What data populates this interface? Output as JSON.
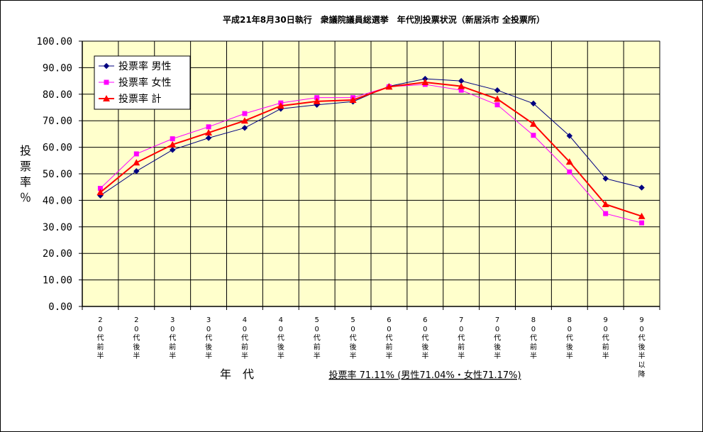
{
  "chart_data": {
    "type": "line",
    "title": "平成21年8月30日執行　衆議院議員総選挙　年代別投票状況（新居浜市 全投票所）",
    "xlabel": "年　代",
    "ylabel": "投票率％",
    "ylim": [
      0,
      100
    ],
    "yticks": [
      "0.00",
      "10.00",
      "20.00",
      "30.00",
      "40.00",
      "50.00",
      "60.00",
      "70.00",
      "80.00",
      "90.00",
      "100.00"
    ],
    "grid": true,
    "legend_position": "top-left",
    "categories": [
      "20代前半",
      "20代後半",
      "30代前半",
      "30代後半",
      "40代前半",
      "40代後半",
      "50代前半",
      "50代後半",
      "60代前半",
      "60代後半",
      "70代前半",
      "70代後半",
      "80代前半",
      "80代後半",
      "90代前半",
      "90代後半以降"
    ],
    "series": [
      {
        "name": "投票率 男性",
        "color": "#000080",
        "marker": "diamond",
        "values": [
          41.8,
          51.0,
          59.0,
          63.5,
          67.3,
          74.5,
          76.0,
          77.2,
          83.0,
          85.8,
          85.0,
          81.5,
          76.5,
          64.3,
          48.2,
          44.8
        ]
      },
      {
        "name": "投票率 女性",
        "color": "#ff00ff",
        "marker": "square",
        "values": [
          44.5,
          57.5,
          63.2,
          67.7,
          72.7,
          76.7,
          78.7,
          78.7,
          82.8,
          83.7,
          81.5,
          76.0,
          64.5,
          50.7,
          35.0,
          31.5
        ]
      },
      {
        "name": "投票率 計",
        "color": "#ff0000",
        "marker": "triangle",
        "values": [
          43.0,
          54.2,
          61.0,
          65.5,
          70.0,
          75.6,
          77.3,
          77.8,
          82.8,
          84.5,
          83.0,
          78.2,
          68.8,
          54.5,
          38.5,
          34.0
        ]
      }
    ],
    "annotation": "投票率 71.11% (男性71.04%・女性71.17%)"
  }
}
